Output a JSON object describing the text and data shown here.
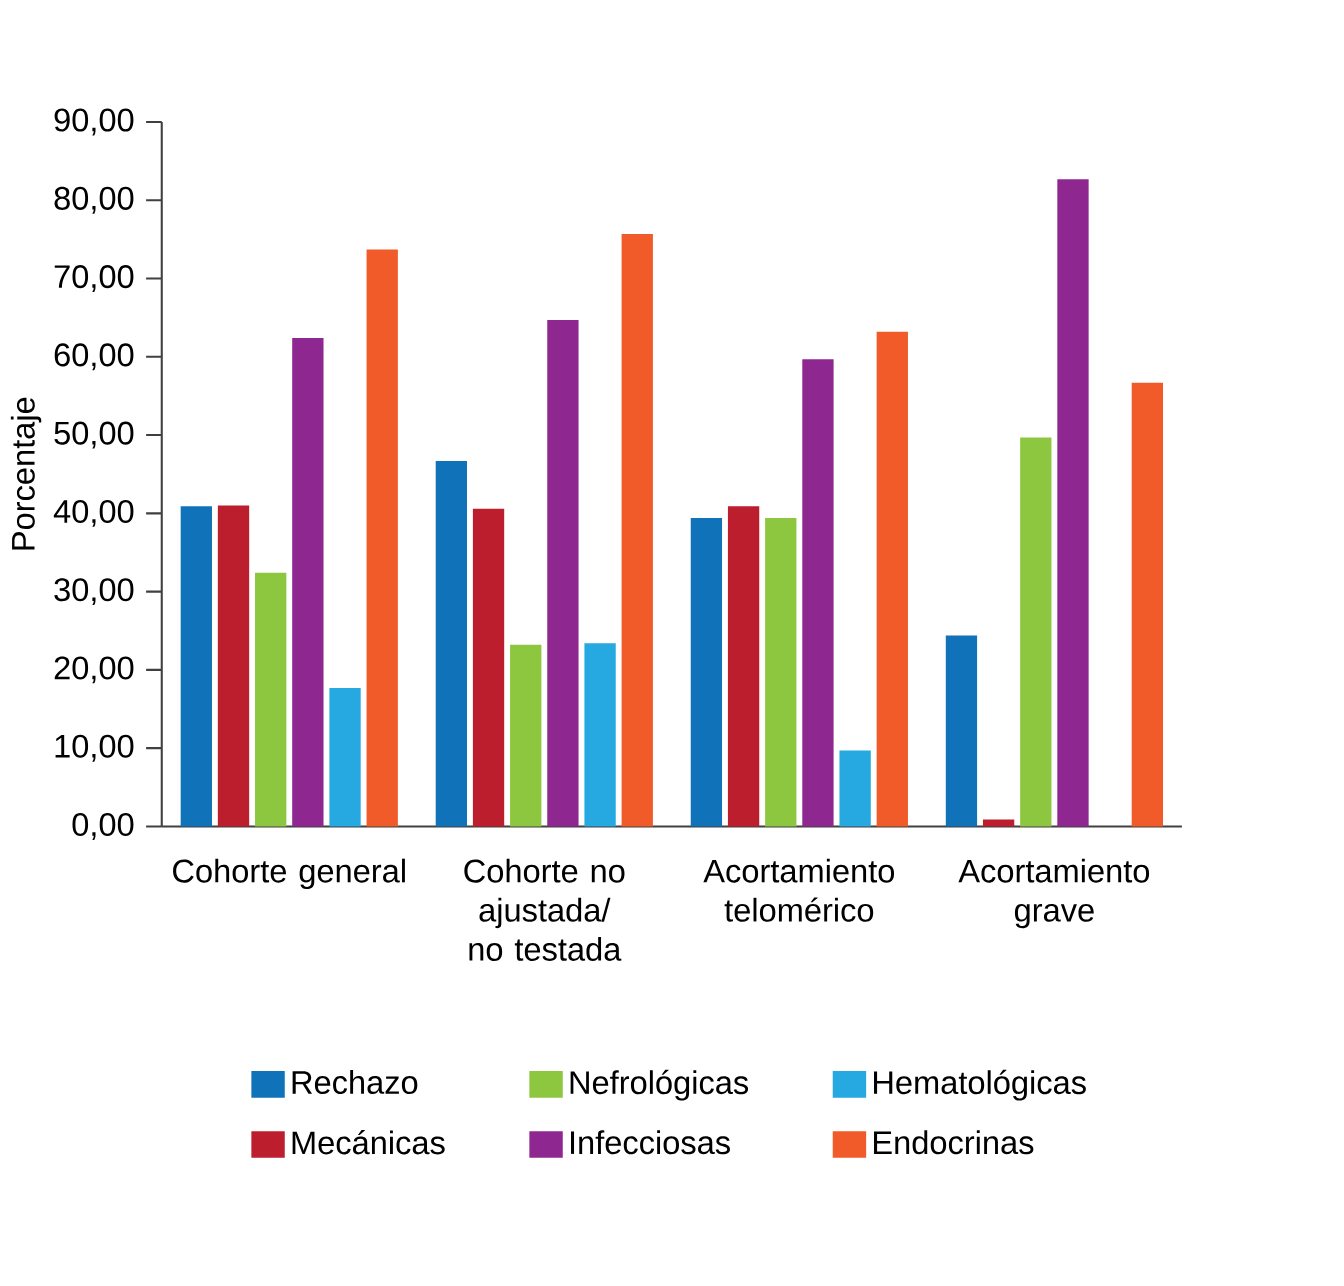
{
  "chart_data": {
    "type": "bar",
    "ylabel": "Porcentaje",
    "categories": [
      "Cohorte general",
      "Cohorte no ajustada/ no testada",
      "Acortamiento telomérico",
      "Acortamiento grave"
    ],
    "series": [
      {
        "name": "Rechazo",
        "color": "#1072b8",
        "values": [
          40.9,
          46.7,
          39.4,
          24.4
        ]
      },
      {
        "name": "Mecánicas",
        "color": "#bc1e2d",
        "values": [
          41.0,
          40.6,
          40.9,
          0.9
        ]
      },
      {
        "name": "Nefrológicas",
        "color": "#8dc63f",
        "values": [
          32.4,
          23.2,
          39.4,
          49.7
        ]
      },
      {
        "name": "Infecciosas",
        "color": "#8e278f",
        "values": [
          62.4,
          64.7,
          59.7,
          82.7
        ]
      },
      {
        "name": "Hematológicas",
        "color": "#25a9e0",
        "values": [
          17.7,
          23.4,
          9.7,
          null
        ]
      },
      {
        "name": "Endocrinas",
        "color": "#f15a29",
        "values": [
          73.7,
          75.7,
          63.2,
          56.7
        ]
      }
    ],
    "ylim": [
      0,
      90
    ],
    "yticks": [
      {
        "value": 0,
        "label": "0,00"
      },
      {
        "value": 10,
        "label": "10,00"
      },
      {
        "value": 20,
        "label": "20,00"
      },
      {
        "value": 30,
        "label": "30,00"
      },
      {
        "value": 40,
        "label": "40,00"
      },
      {
        "value": 50,
        "label": "50,00"
      },
      {
        "value": 60,
        "label": "60,00"
      },
      {
        "value": 70,
        "label": "70,00"
      },
      {
        "value": 80,
        "label": "80,00"
      },
      {
        "value": 90,
        "label": "90,00"
      }
    ],
    "grid": false,
    "legend": "bottom"
  }
}
